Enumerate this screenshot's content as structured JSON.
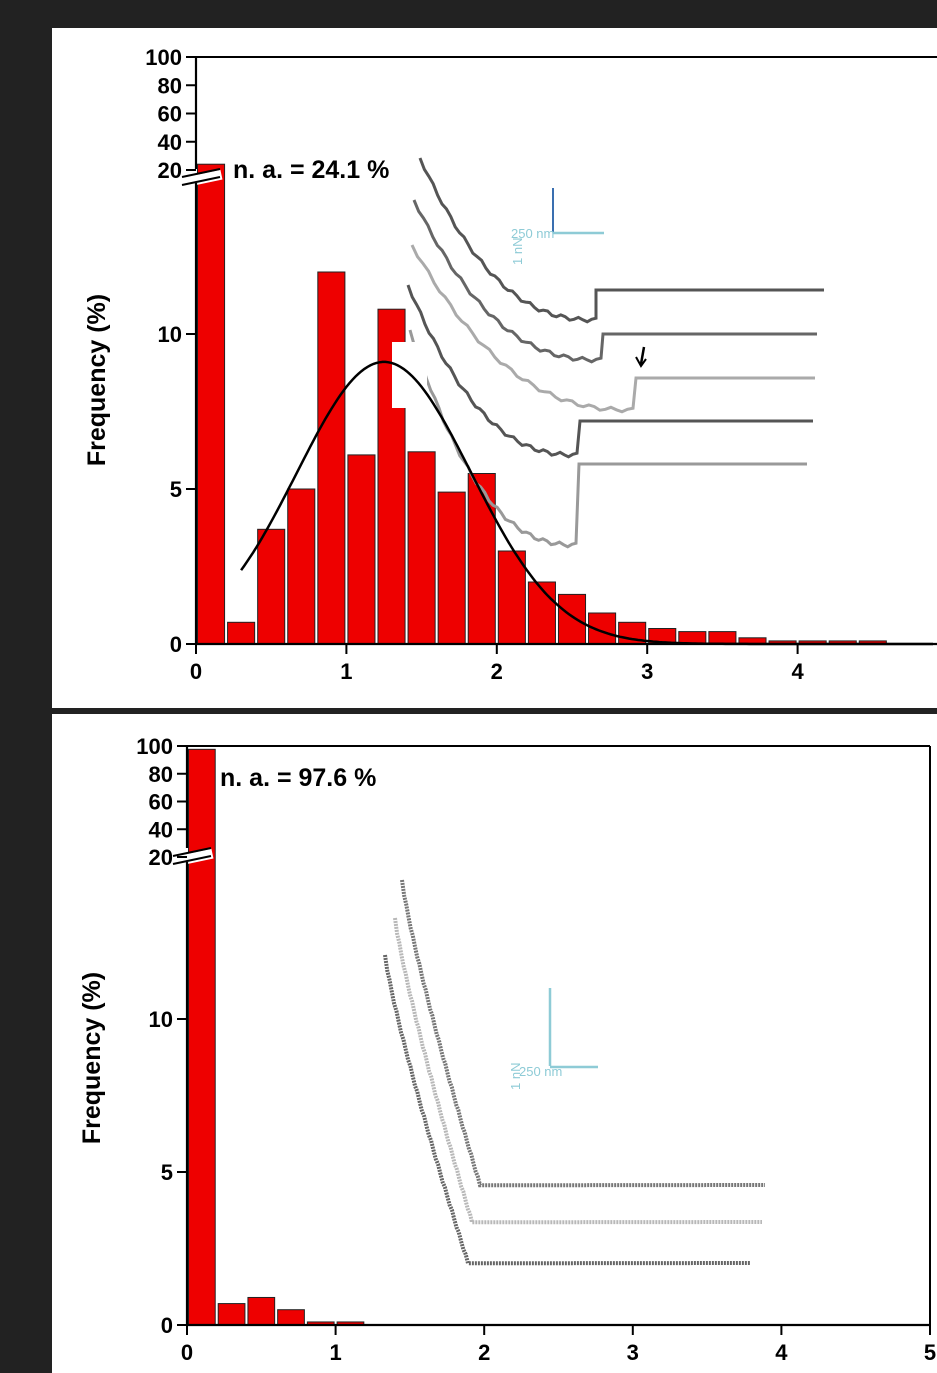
{
  "colors": {
    "background": "#222222",
    "panel": "#ffffff",
    "bar": "#ee0000",
    "fit": "#000000",
    "scale_bar": "#8ecbd6",
    "scale_bar_dark": "#3a6fb0",
    "traces": [
      "#555555",
      "#666666",
      "#aaaaaa",
      "#555555",
      "#999999"
    ]
  },
  "chart_data": [
    {
      "type": "bar",
      "panel": "top",
      "ylabel": "Frequency (%)",
      "xlabel": "",
      "x_ticks": [
        "0",
        "1",
        "2",
        "3",
        "4"
      ],
      "y_ticks_lower": [
        "0",
        "5",
        "10"
      ],
      "y_ticks_upper": [
        "20",
        "40",
        "60",
        "80",
        "100"
      ],
      "xlim": [
        0,
        4.9
      ],
      "ylim_lower": [
        0,
        15
      ],
      "ylim_upper": [
        20,
        100
      ],
      "axis_break": true,
      "annotation": "n. a. = 24.1 %",
      "bin_width": 0.2,
      "x": [
        0.1,
        0.3,
        0.5,
        0.7,
        0.9,
        1.1,
        1.3,
        1.5,
        1.7,
        1.9,
        2.1,
        2.3,
        2.5,
        2.7,
        2.9,
        3.1,
        3.3,
        3.5,
        3.7,
        3.9,
        4.1,
        4.3,
        4.5,
        4.7
      ],
      "values": [
        24.1,
        0.7,
        3.7,
        5.0,
        12.0,
        6.1,
        10.8,
        6.2,
        4.9,
        5.5,
        3.0,
        2.0,
        1.6,
        1.0,
        0.7,
        0.5,
        0.4,
        0.4,
        0.2,
        0.1,
        0.1,
        0.1,
        0.1,
        0.0
      ],
      "fit": {
        "type": "gaussian",
        "amplitude": 9.1,
        "center": 1.25,
        "sigma": 0.58,
        "x_start": 0.3
      },
      "scale_bar": {
        "x_label": "250 nm",
        "y_label": "1 nN"
      },
      "inset_traces": 5
    },
    {
      "type": "bar",
      "panel": "bottom",
      "ylabel": "Frequency (%)",
      "xlabel": "",
      "x_ticks": [
        "0",
        "1",
        "2",
        "3",
        "4",
        "5"
      ],
      "y_ticks_lower": [
        "0",
        "5",
        "10"
      ],
      "y_ticks_upper": [
        "20",
        "40",
        "60",
        "80",
        "100"
      ],
      "xlim": [
        0,
        5
      ],
      "ylim_lower": [
        0,
        15
      ],
      "ylim_upper": [
        20,
        100
      ],
      "axis_break": true,
      "annotation": "n. a. = 97.6 %",
      "bin_width": 0.2,
      "x": [
        0.1,
        0.3,
        0.5,
        0.7,
        0.9,
        1.1
      ],
      "values": [
        97.6,
        0.7,
        0.9,
        0.5,
        0.1,
        0.1
      ],
      "scale_bar": {
        "x_label": "250 nm",
        "y_label": "1 nN"
      },
      "inset_traces": 3
    }
  ]
}
